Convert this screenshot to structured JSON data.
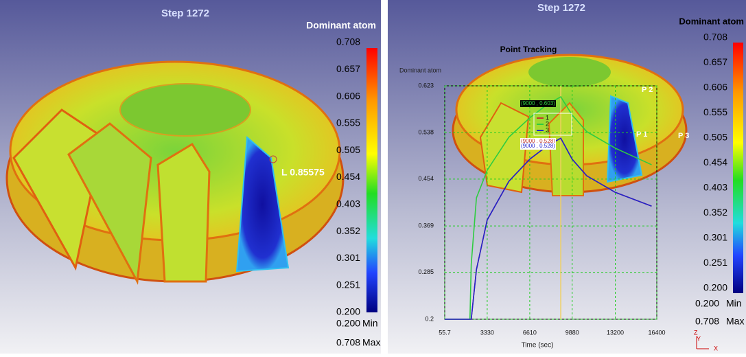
{
  "left_panel": {
    "title": "Step 1272",
    "legend_title": "Dominant atom",
    "colorbar_labels": [
      "0.708",
      "0.657",
      "0.606",
      "0.555",
      "0.505",
      "0.454",
      "0.403",
      "0.352",
      "0.301",
      "0.251",
      "0.200"
    ],
    "min_value": "0.200",
    "min_text": "Min",
    "max_value": "0.708",
    "max_text": "Max",
    "probe_label": "L  0.85575"
  },
  "right_panel": {
    "title": "Step 1272",
    "legend_title": "Dominant atom",
    "colorbar_labels": [
      "0.708",
      "0.657",
      "0.606",
      "0.555",
      "0.505",
      "0.454",
      "0.403",
      "0.352",
      "0.301",
      "0.251",
      "0.200"
    ],
    "min_value": "0.200",
    "min_text": "Min",
    "max_value": "0.708",
    "max_text": "Max",
    "points": [
      "P 1",
      "P 2",
      "P 3"
    ],
    "triad": [
      "Z",
      "Y",
      "X"
    ]
  },
  "chart_data": {
    "type": "line",
    "title": "Point Tracking",
    "y_label": "Dominant atom",
    "x_label": "Time (sec)",
    "x": [
      55.7,
      2000,
      2100,
      2500,
      3330,
      5000,
      6610,
      8000,
      9000,
      9880,
      11000,
      13200,
      16000
    ],
    "series": [
      {
        "name": "1",
        "color": "#c0392b",
        "values": [
          0.2,
          0.2,
          0.2,
          0.29,
          0.38,
          0.45,
          0.49,
          0.515,
          0.528,
          0.49,
          0.46,
          0.43,
          0.405
        ]
      },
      {
        "name": "2",
        "color": "#2ecc40",
        "values": [
          0.2,
          0.2,
          0.3,
          0.42,
          0.47,
          0.53,
          0.565,
          0.59,
          0.603,
          0.57,
          0.54,
          0.51,
          0.48
        ]
      },
      {
        "name": "3",
        "color": "#2222cc",
        "values": [
          0.2,
          0.2,
          0.2,
          0.29,
          0.38,
          0.45,
          0.49,
          0.515,
          0.528,
          0.49,
          0.46,
          0.43,
          0.405
        ]
      }
    ],
    "annotations": [
      "(9000 , 0.603)",
      "(9000 , 0.528)",
      "(9000 , 0.528)"
    ],
    "cursor_x": 9000,
    "xlim": [
      55.7,
      16400
    ],
    "ylim": [
      0.2,
      0.623
    ],
    "xticks": [
      55.7,
      3330,
      6610,
      9880,
      13200,
      16400
    ],
    "yticks": [
      0.2,
      0.285,
      0.369,
      0.454,
      0.538,
      0.623
    ],
    "grid": true
  }
}
